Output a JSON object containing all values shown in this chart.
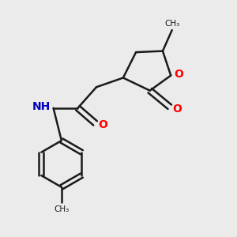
{
  "background_color": "#ebebeb",
  "bond_color": "#1a1a1a",
  "o_color": "#ff0000",
  "n_color": "#0000bb",
  "bond_width": 1.8,
  "figsize": [
    3.0,
    3.0
  ],
  "dpi": 100,
  "xlim": [
    0,
    10
  ],
  "ylim": [
    0,
    10
  ]
}
